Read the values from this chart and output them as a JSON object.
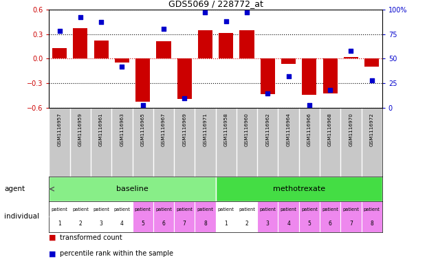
{
  "title": "GDS5069 / 228772_at",
  "samples": [
    "GSM1116957",
    "GSM1116959",
    "GSM1116961",
    "GSM1116963",
    "GSM1116965",
    "GSM1116967",
    "GSM1116969",
    "GSM1116971",
    "GSM1116958",
    "GSM1116960",
    "GSM1116962",
    "GSM1116964",
    "GSM1116966",
    "GSM1116968",
    "GSM1116970",
    "GSM1116972"
  ],
  "transformed_count": [
    0.13,
    0.37,
    0.22,
    -0.05,
    -0.52,
    0.21,
    -0.49,
    0.35,
    0.31,
    0.35,
    -0.43,
    -0.06,
    -0.44,
    -0.42,
    0.02,
    -0.1
  ],
  "percentile_rank": [
    78,
    92,
    87,
    42,
    3,
    80,
    10,
    97,
    88,
    97,
    15,
    32,
    3,
    18,
    58,
    28
  ],
  "ylim": [
    -0.6,
    0.6
  ],
  "yticks_left": [
    -0.6,
    -0.3,
    0,
    0.3,
    0.6
  ],
  "right_yticks": [
    0,
    25,
    50,
    75,
    100
  ],
  "agent_groups": [
    {
      "label": "baseline",
      "start": 0,
      "end": 8,
      "color": "#88EE88"
    },
    {
      "label": "methotrexate",
      "start": 8,
      "end": 16,
      "color": "#44DD44"
    }
  ],
  "indiv_colors_baseline": [
    "#FFFFFF",
    "#FFFFFF",
    "#FFFFFF",
    "#FFFFFF",
    "#EE88EE",
    "#EE88EE",
    "#EE88EE",
    "#EE88EE"
  ],
  "indiv_colors_methotrexate": [
    "#FFFFFF",
    "#FFFFFF",
    "#EE88EE",
    "#EE88EE",
    "#EE88EE",
    "#EE88EE",
    "#EE88EE",
    "#EE88EE"
  ],
  "bar_color": "#CC0000",
  "dot_color": "#0000CC",
  "sample_bg": "#C8C8C8",
  "legend_bar_label": "transformed count",
  "legend_dot_label": "percentile rank within the sample",
  "agent_label": "agent",
  "individual_label": "individual",
  "n": 16
}
